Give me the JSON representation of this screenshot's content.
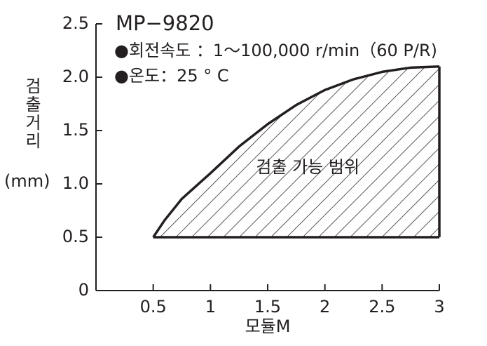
{
  "chart_data": {
    "type": "area",
    "title": "MP−9820",
    "annotations": [
      "●회전속도 ：1～100,000 r/min（60 P/R)",
      "●온도：25 °  C"
    ],
    "region_label": "검출 가능 범위",
    "x_label": "모듈M",
    "y_label": "검출거리",
    "y_unit": "(mm)",
    "x": [
      0.5,
      0.6,
      0.75,
      1,
      1.25,
      1.5,
      1.75,
      2,
      2.25,
      2.5,
      2.75,
      3
    ],
    "values": [
      0.5,
      0.66,
      0.86,
      1.1,
      1.35,
      1.56,
      1.74,
      1.88,
      1.98,
      2.05,
      2.09,
      2.1
    ],
    "base_values": [
      0.5,
      0.5,
      0.5,
      0.5,
      0.5,
      0.5,
      0.5,
      0.5,
      0.5,
      0.5,
      0.5,
      0.5
    ],
    "color": "#231f20",
    "hatch": true,
    "xlim": [
      0,
      3
    ],
    "ylim": [
      0,
      2.5
    ],
    "xticks": [
      0.5,
      1,
      1.5,
      2,
      2.5,
      3
    ],
    "yticks": [
      0,
      0.5,
      {
        "value": 1,
        "label": "1.0"
      },
      1.5,
      {
        "value": 2,
        "label": "2.0"
      },
      2.5
    ]
  }
}
